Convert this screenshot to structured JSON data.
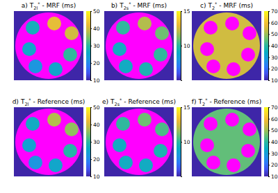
{
  "chart_data": [
    {
      "type": "heatmap",
      "label": "a)",
      "symbol": "T",
      "subscript": "2l",
      "superscript": "*",
      "title": "- MRF (ms)",
      "xlim": [
        0,
        100
      ],
      "ylim": [
        0,
        100
      ],
      "tick_labels": false,
      "background": 10,
      "phantom": {
        "x": 50,
        "y": 50,
        "r": 48,
        "value": null
      },
      "vials": {
        "x": [
          27,
          58,
          83,
          22,
          81,
          31,
          60
        ],
        "y": [
          24,
          18,
          32,
          55,
          63,
          80,
          84
        ],
        "r": 10,
        "values": [
          27,
          42,
          40,
          25,
          30,
          22,
          25
        ]
      },
      "colorbar_lim": [
        10,
        50
      ],
      "colorbar_ticks": [
        10,
        20,
        30,
        40,
        50
      ]
    },
    {
      "type": "heatmap",
      "label": "b)",
      "symbol": "T",
      "subscript": "2s",
      "superscript": "*",
      "title": "- MRF (ms)",
      "xlim": [
        0,
        100
      ],
      "ylim": [
        0,
        100
      ],
      "tick_labels": false,
      "background": 5,
      "phantom": {
        "x": 50,
        "y": 50,
        "r": 48,
        "value": null
      },
      "vials": {
        "x": [
          27,
          58,
          83,
          22,
          81,
          31,
          60
        ],
        "y": [
          24,
          18,
          32,
          55,
          63,
          80,
          84
        ],
        "r": 10,
        "values": [
          10,
          12,
          11,
          9,
          10,
          9,
          9.5
        ]
      },
      "colorbar_lim": [
        5,
        15
      ],
      "colorbar_ticks": [
        10,
        15
      ]
    },
    {
      "type": "heatmap",
      "label": "c)",
      "symbol": "T",
      "subscript": "2",
      "superscript": "*",
      "title": "- MRF (ms)",
      "xlim": [
        0,
        100
      ],
      "ylim": [
        0,
        100
      ],
      "tick_labels": false,
      "background": 10,
      "phantom": {
        "x": 50,
        "y": 50,
        "r": 48,
        "value": 55
      },
      "vials": {
        "x": [
          27,
          58,
          83,
          22,
          81,
          31,
          60
        ],
        "y": [
          24,
          18,
          32,
          55,
          63,
          80,
          84
        ],
        "r": 10,
        "values": [
          null,
          null,
          null,
          null,
          null,
          null,
          null
        ]
      },
      "colorbar_lim": [
        10,
        70
      ],
      "colorbar_ticks": [
        10,
        20,
        30,
        40,
        50,
        60,
        70
      ]
    },
    {
      "type": "heatmap",
      "label": "d)",
      "symbol": "T",
      "subscript": "2l",
      "superscript": "*",
      "title": "- Reference (ms)",
      "xlim": [
        0,
        100
      ],
      "ylim": [
        0,
        100
      ],
      "tick_labels": false,
      "background": 10,
      "phantom": {
        "x": 50,
        "y": 50,
        "r": 48,
        "value": null
      },
      "vials": {
        "x": [
          27,
          58,
          83,
          22,
          81,
          31,
          60
        ],
        "y": [
          24,
          18,
          32,
          55,
          63,
          80,
          84
        ],
        "r": 10,
        "values": [
          26,
          38,
          36,
          24,
          29,
          22,
          25
        ]
      },
      "colorbar_lim": [
        10,
        50
      ],
      "colorbar_ticks": [
        10,
        20,
        30,
        40,
        50
      ]
    },
    {
      "type": "heatmap",
      "label": "e)",
      "symbol": "T",
      "subscript": "2s",
      "superscript": "*",
      "title": "- Reference (ms)",
      "xlim": [
        0,
        100
      ],
      "ylim": [
        0,
        100
      ],
      "tick_labels": false,
      "background": 5,
      "phantom": {
        "x": 50,
        "y": 50,
        "r": 48,
        "value": null
      },
      "vials": {
        "x": [
          27,
          58,
          83,
          22,
          81,
          31,
          60
        ],
        "y": [
          24,
          18,
          32,
          55,
          63,
          80,
          84
        ],
        "r": 10,
        "values": [
          10,
          11,
          10.5,
          9,
          9.5,
          9,
          9
        ]
      },
      "colorbar_lim": [
        5,
        15
      ],
      "colorbar_ticks": [
        10,
        15
      ]
    },
    {
      "type": "heatmap",
      "label": "f)",
      "symbol": "T",
      "subscript": "2",
      "superscript": "*",
      "title": "- Reference (ms)",
      "xlim": [
        0,
        100
      ],
      "ylim": [
        0,
        100
      ],
      "tick_labels": false,
      "background": 10,
      "phantom": {
        "x": 50,
        "y": 50,
        "r": 48,
        "value": 45
      },
      "vials": {
        "x": [
          27,
          58,
          83,
          22,
          81,
          31,
          60
        ],
        "y": [
          24,
          18,
          32,
          55,
          63,
          80,
          84
        ],
        "r": 10,
        "values": [
          null,
          null,
          null,
          null,
          null,
          null,
          null
        ]
      },
      "colorbar_lim": [
        10,
        70
      ],
      "colorbar_ticks": [
        10,
        20,
        30,
        40,
        50,
        60,
        70
      ]
    }
  ]
}
